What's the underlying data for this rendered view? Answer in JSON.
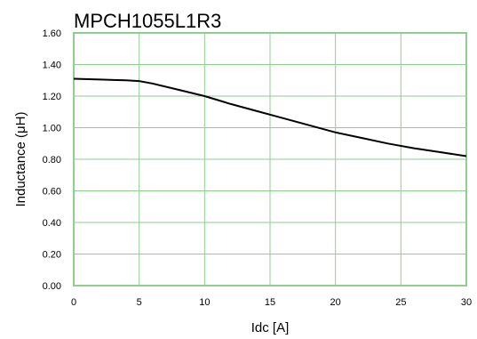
{
  "chart_data": {
    "type": "line",
    "title": "MPCH1055L1R3",
    "xlabel": "Idc [A]",
    "ylabel": "Inductance (μH)",
    "xlim": [
      0,
      30
    ],
    "ylim": [
      0,
      1.6
    ],
    "x_ticks": [
      "0",
      "5",
      "10",
      "15",
      "20",
      "25",
      "30"
    ],
    "y_ticks": [
      "0.00",
      "0.20",
      "0.40",
      "0.60",
      "0.80",
      "1.00",
      "1.20",
      "1.40",
      "1.60"
    ],
    "grid": true,
    "grid_color": "#8fce8f",
    "line_color": "#000000",
    "series": [
      {
        "x": [
          0,
          2,
          4,
          5,
          6,
          8,
          10,
          12,
          14,
          16,
          18,
          20,
          22,
          24,
          26,
          28,
          30
        ],
        "values": [
          1.31,
          1.305,
          1.3,
          1.295,
          1.28,
          1.24,
          1.2,
          1.15,
          1.105,
          1.06,
          1.015,
          0.97,
          0.935,
          0.9,
          0.87,
          0.845,
          0.82
        ]
      }
    ]
  }
}
